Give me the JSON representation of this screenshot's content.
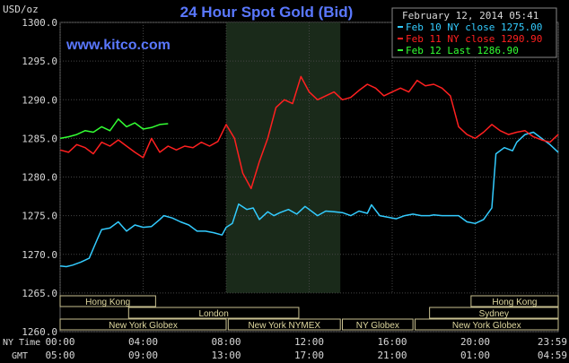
{
  "chart_data": {
    "type": "line",
    "title": "24 Hour Spot Gold (Bid)",
    "source": "www.kitco.com",
    "date": "February 12, 2014 05:41",
    "ylabel": "USD/oz",
    "ylim": [
      1260,
      1300
    ],
    "yticks": [
      "1300.0",
      "1295.0",
      "1290.0",
      "1285.0",
      "1280.0",
      "1275.0",
      "1270.0",
      "1265.0",
      "1260.0"
    ],
    "xlim": [
      0,
      24
    ],
    "xticks_ny": [
      "00:00",
      "04:00",
      "08:00",
      "12:00",
      "16:00",
      "20:00",
      "23:59"
    ],
    "xticks_gmt": [
      "05:00",
      "09:00",
      "13:00",
      "17:00",
      "21:00",
      "01:00",
      "04:59"
    ],
    "xaxis_label_ny": "NY Time",
    "xaxis_label_gmt": "GMT",
    "grid": true,
    "legend_position": "top-right",
    "series": [
      {
        "name": "Feb 10 NY close 1275.00",
        "color": "#33ccff",
        "x": [
          0,
          0.3,
          0.6,
          1,
          1.4,
          1.8,
          2,
          2.4,
          2.8,
          3.2,
          3.6,
          4,
          4.4,
          4.8,
          5,
          5.4,
          5.8,
          6.2,
          6.6,
          7,
          7.4,
          7.8,
          8,
          8.3,
          8.6,
          9,
          9.3,
          9.6,
          10,
          10.3,
          10.6,
          11,
          11.4,
          11.8,
          12,
          12.4,
          12.8,
          13.2,
          13.6,
          14,
          14.4,
          14.8,
          15,
          15.4,
          15.8,
          16.2,
          16.6,
          17,
          17.4,
          17.8,
          18,
          18.4,
          18.8,
          19.2,
          19.6,
          20,
          20.4,
          20.8,
          21,
          21.4,
          21.8,
          22,
          22.4,
          22.8,
          23.2,
          23.6,
          24
        ],
        "y": [
          1268.5,
          1268.4,
          1268.6,
          1269.0,
          1269.5,
          1272.0,
          1273.2,
          1273.4,
          1274.2,
          1273.0,
          1273.8,
          1273.5,
          1273.6,
          1274.5,
          1275.0,
          1274.7,
          1274.2,
          1273.8,
          1273.0,
          1273.0,
          1272.8,
          1272.5,
          1273.5,
          1274.0,
          1276.5,
          1275.8,
          1276.0,
          1274.5,
          1275.5,
          1275.0,
          1275.4,
          1275.8,
          1275.2,
          1276.2,
          1275.8,
          1275.0,
          1275.6,
          1275.5,
          1275.4,
          1275.0,
          1275.6,
          1275.3,
          1276.4,
          1275.0,
          1274.8,
          1274.6,
          1275.0,
          1275.2,
          1275.0,
          1275.0,
          1275.1,
          1275.0,
          1275.0,
          1275.0,
          1274.2,
          1274.0,
          1274.5,
          1276.0,
          1283.0,
          1283.8,
          1283.4,
          1284.5,
          1285.5,
          1285.8,
          1285.0,
          1284.2,
          1283.2
        ]
      },
      {
        "name": "Feb 11 NY close 1290.90",
        "color": "#ff2020",
        "x": [
          0,
          0.4,
          0.8,
          1.2,
          1.6,
          2,
          2.4,
          2.8,
          3.2,
          3.6,
          4,
          4.4,
          4.8,
          5.2,
          5.6,
          6,
          6.4,
          6.8,
          7.2,
          7.6,
          8,
          8.4,
          8.8,
          9.2,
          9.6,
          10,
          10.4,
          10.8,
          11.2,
          11.6,
          12,
          12.4,
          12.8,
          13.2,
          13.6,
          14,
          14.4,
          14.8,
          15.2,
          15.6,
          16,
          16.4,
          16.8,
          17.2,
          17.6,
          18,
          18.4,
          18.8,
          19.2,
          19.6,
          20,
          20.4,
          20.8,
          21.2,
          21.6,
          22,
          22.4,
          22.8,
          23.2,
          23.6,
          24
        ],
        "y": [
          1283.5,
          1283.2,
          1284.2,
          1283.8,
          1283.0,
          1284.5,
          1284.0,
          1284.8,
          1284.0,
          1283.2,
          1282.5,
          1285.0,
          1283.2,
          1284.0,
          1283.5,
          1284.0,
          1283.8,
          1284.5,
          1284.0,
          1284.6,
          1286.8,
          1285.0,
          1280.5,
          1278.5,
          1282.0,
          1285.0,
          1289.0,
          1290.0,
          1289.5,
          1293.0,
          1291.0,
          1290.0,
          1290.5,
          1291.0,
          1290.0,
          1290.3,
          1291.2,
          1292.0,
          1291.5,
          1290.5,
          1291.0,
          1291.5,
          1291.0,
          1292.5,
          1291.8,
          1292.0,
          1291.5,
          1290.5,
          1286.5,
          1285.5,
          1285.0,
          1285.8,
          1286.8,
          1286.0,
          1285.5,
          1285.8,
          1286.0,
          1285.2,
          1284.8,
          1284.5,
          1285.5
        ]
      },
      {
        "name": "Feb 12 Last 1286.90",
        "color": "#33ff33",
        "x": [
          0,
          0.4,
          0.8,
          1.2,
          1.6,
          2,
          2.4,
          2.8,
          3.2,
          3.6,
          4,
          4.4,
          4.8,
          5.2
        ],
        "y": [
          1285.0,
          1285.2,
          1285.5,
          1286.0,
          1285.8,
          1286.5,
          1286.0,
          1287.5,
          1286.5,
          1287.0,
          1286.2,
          1286.4,
          1286.8,
          1286.9
        ]
      }
    ],
    "shaded_region": {
      "from": 8,
      "to": 13.5
    },
    "markets": [
      {
        "label": "Hong Kong",
        "row": 0,
        "from": 0,
        "to": 4.6
      },
      {
        "label": "London",
        "row": 1,
        "from": 3.3,
        "to": 11.5
      },
      {
        "label": "New York Globex",
        "row": 2,
        "from": 0,
        "to": 8
      },
      {
        "label": "New York NYMEX",
        "row": 2,
        "from": 8.1,
        "to": 13.5
      },
      {
        "label": "NY Globex",
        "row": 2,
        "from": 13.6,
        "to": 17
      },
      {
        "label": "Hong Kong",
        "row": 0,
        "from": 19.8,
        "to": 24
      },
      {
        "label": "Sydney",
        "row": 1,
        "from": 17.8,
        "to": 24
      },
      {
        "label": "New York Globex",
        "row": 2,
        "from": 17.1,
        "to": 24
      }
    ]
  }
}
